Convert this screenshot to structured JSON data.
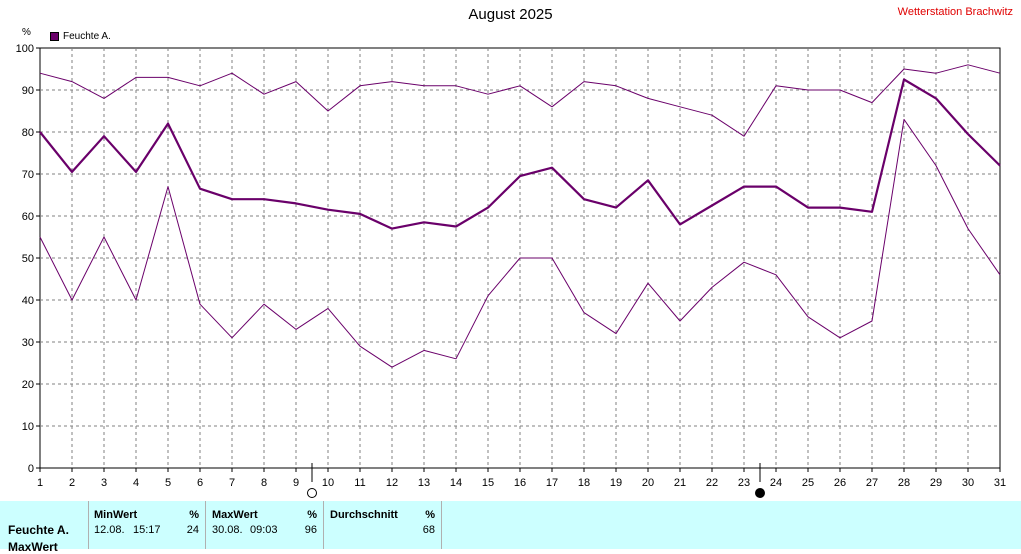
{
  "title": "August 2025",
  "station": "Wetterstation Brachwitz",
  "unit_label": "%",
  "legend": "Feuchte A.",
  "colors": {
    "series": "#6a006a",
    "grid": "#808080",
    "footer_bg": "#ccffff",
    "station": "#e00000"
  },
  "chart_data": {
    "type": "line",
    "x": [
      1,
      2,
      3,
      4,
      5,
      6,
      7,
      8,
      9,
      10,
      11,
      12,
      13,
      14,
      15,
      16,
      17,
      18,
      19,
      20,
      21,
      22,
      23,
      24,
      25,
      26,
      27,
      28,
      29,
      30,
      31
    ],
    "xlim": [
      1,
      31
    ],
    "ylim": [
      0,
      100
    ],
    "yticks": [
      0,
      10,
      20,
      30,
      40,
      50,
      60,
      70,
      80,
      90,
      100
    ],
    "grid": true,
    "series": [
      {
        "name": "Feuchte A.",
        "role": "avg",
        "values": [
          80,
          70.5,
          79,
          70.5,
          82,
          66.5,
          64,
          64,
          63,
          61.5,
          60.5,
          57,
          58.5,
          57.5,
          62,
          69.5,
          71.5,
          64,
          62,
          68.5,
          58,
          62.5,
          67,
          67,
          62,
          62,
          61,
          92.5,
          88,
          79.5,
          72
        ]
      },
      {
        "role": "max",
        "values": [
          94,
          92,
          88,
          93,
          93,
          91,
          94,
          89,
          92,
          85,
          91,
          92,
          91,
          91,
          89,
          91,
          86,
          92,
          91,
          88,
          86,
          84,
          79,
          91,
          90,
          90,
          87,
          95,
          94,
          96,
          94
        ]
      },
      {
        "role": "min",
        "values": [
          55,
          40,
          55,
          40,
          67,
          39,
          31,
          39,
          33,
          38,
          29,
          24,
          28,
          26,
          41,
          50,
          50,
          37,
          32,
          44,
          35,
          43,
          49,
          46,
          36,
          31,
          35,
          83,
          72,
          57,
          46
        ]
      }
    ],
    "markers": [
      {
        "day": 9.5,
        "symbol": "open-circle"
      },
      {
        "day": 23.5,
        "symbol": "filled-circle"
      }
    ]
  },
  "footer": {
    "row_label": "Feuchte A.",
    "row_label_2": "MaxWert",
    "min": {
      "header": "MinWert",
      "unit": "%",
      "date": "12.08.",
      "time": "15:17",
      "value": "24"
    },
    "max": {
      "header": "MaxWert",
      "unit": "%",
      "date": "30.08.",
      "time": "09:03",
      "value": "96"
    },
    "avg": {
      "header": "Durchschnitt",
      "unit": "%",
      "value": "68"
    }
  }
}
